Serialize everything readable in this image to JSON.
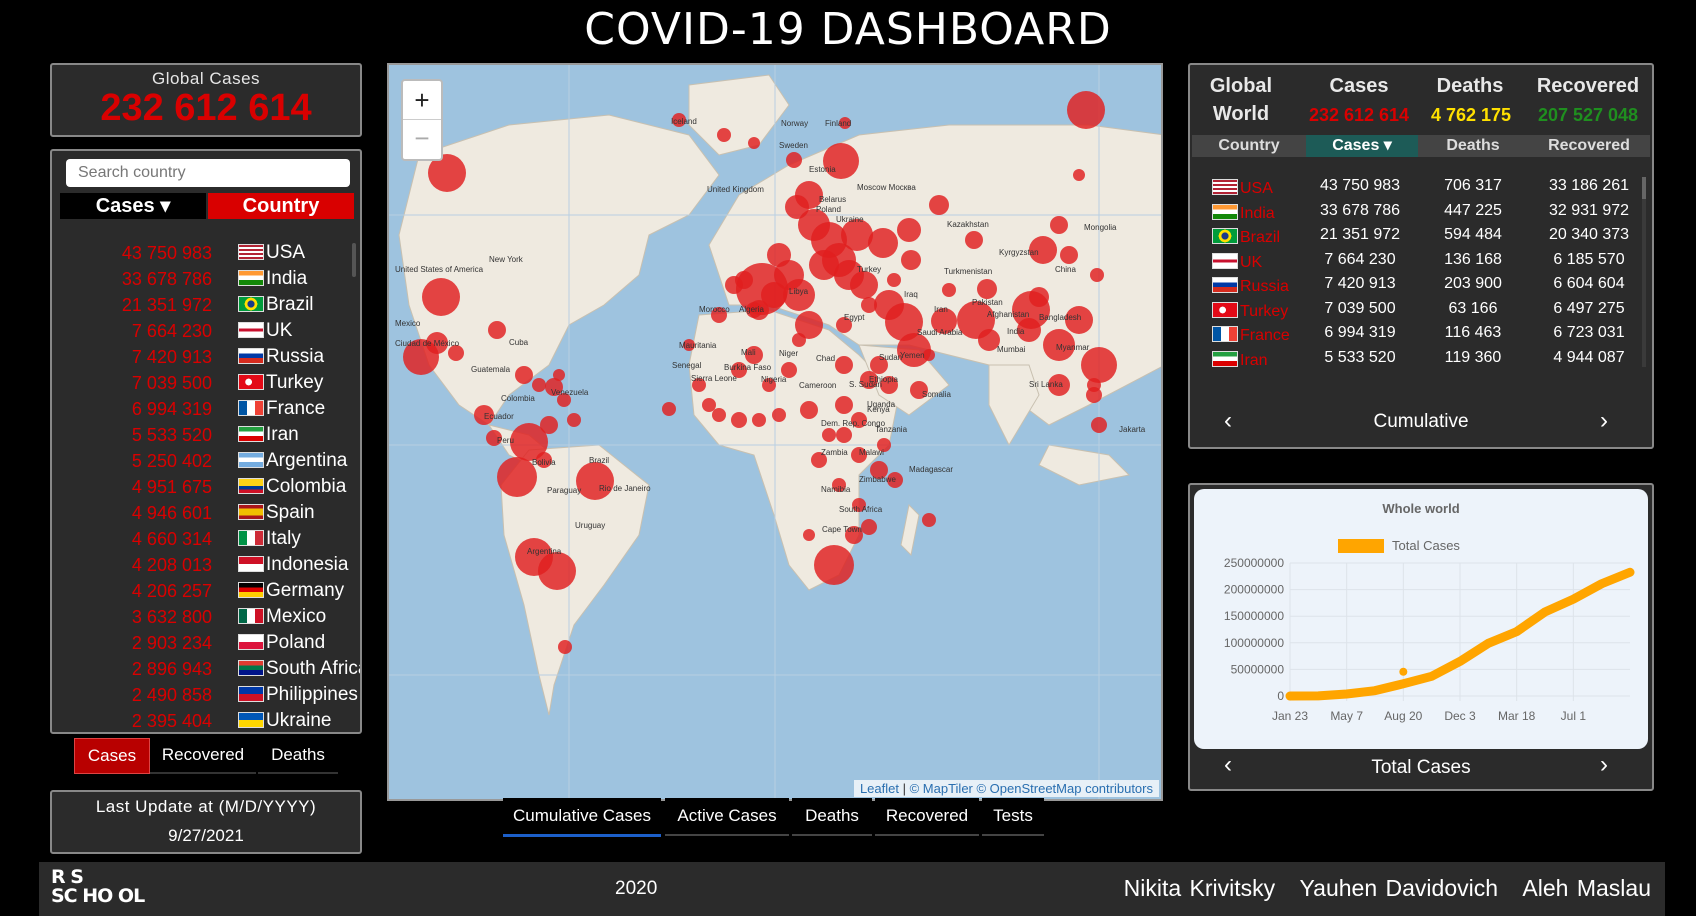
{
  "header": {
    "title": "COVID-19 DASHBOARD"
  },
  "global": {
    "label": "Global Cases",
    "value": "232 612 614"
  },
  "country_list": {
    "search_placeholder": "Search country",
    "sort_label": "Cases ▾",
    "country_label": "Country",
    "rows": [
      {
        "value": "43 750 983",
        "country": "USA",
        "flag": "us"
      },
      {
        "value": "33 678 786",
        "country": "India",
        "flag": "in"
      },
      {
        "value": "21 351 972",
        "country": "Brazil",
        "flag": "br"
      },
      {
        "value": "7 664 230",
        "country": "UK",
        "flag": "uk"
      },
      {
        "value": "7 420 913",
        "country": "Russia",
        "flag": "ru"
      },
      {
        "value": "7 039 500",
        "country": "Turkey",
        "flag": "tr"
      },
      {
        "value": "6 994 319",
        "country": "France",
        "flag": "fr"
      },
      {
        "value": "5 533 520",
        "country": "Iran",
        "flag": "ir"
      },
      {
        "value": "5 250 402",
        "country": "Argentina",
        "flag": "ar"
      },
      {
        "value": "4 951 675",
        "country": "Colombia",
        "flag": "co"
      },
      {
        "value": "4 946 601",
        "country": "Spain",
        "flag": "es"
      },
      {
        "value": "4 660 314",
        "country": "Italy",
        "flag": "it"
      },
      {
        "value": "4 208 013",
        "country": "Indonesia",
        "flag": "id"
      },
      {
        "value": "4 206 257",
        "country": "Germany",
        "flag": "de"
      },
      {
        "value": "3 632 800",
        "country": "Mexico",
        "flag": "mx"
      },
      {
        "value": "2 903 234",
        "country": "Poland",
        "flag": "pl"
      },
      {
        "value": "2 896 943",
        "country": "South Africa",
        "flag": "za"
      },
      {
        "value": "2 490 858",
        "country": "Philippines",
        "flag": "ph"
      },
      {
        "value": "2 395 404",
        "country": "Ukraine",
        "flag": "ua"
      }
    ]
  },
  "list_tabs": [
    "Cases",
    "Recovered",
    "Deaths"
  ],
  "last_update": {
    "label": "Last Update at (M/D/YYYY)",
    "date": "9/27/2021"
  },
  "map": {
    "zoom_in": "+",
    "zoom_out": "−",
    "attribution": {
      "leaflet": "Leaflet",
      "sep": " | ",
      "rest": "© MapTiler © OpenStreetMap contributors"
    },
    "labels": [
      "Iceland",
      "Norway",
      "Finland",
      "Sweden",
      "Estonia",
      "United Kingdom",
      "Belarus",
      "Poland",
      "Ukraine",
      "Moscow Москва",
      "Kazakhstan",
      "Mongolia",
      "Kyrgyzstan",
      "Turkmenistan",
      "China",
      "United States of America",
      "New York",
      "Mexico",
      "Ciudad de México",
      "Cuba",
      "Guatemala",
      "Turkey",
      "Iraq",
      "Iran",
      "Afghanistan",
      "Pakistan",
      "India",
      "Mumbai",
      "Bangladesh",
      "Myanmar",
      "Sri Lanka",
      "Morocco",
      "Algeria",
      "Libya",
      "Egypt",
      "Saudi Arabia",
      "Yemen",
      "Mauritania",
      "Mali",
      "Niger",
      "Chad",
      "Sudan",
      "Senegal",
      "Burkina Faso",
      "Nigeria",
      "Cameroon",
      "S. Sudan",
      "Ethiopia",
      "Somalia",
      "Kenya",
      "Uganda",
      "Dem. Rep. Congo",
      "Tanzania",
      "Zambia",
      "Malawi",
      "Zimbabwe",
      "Madagascar",
      "Namibia",
      "South Africa",
      "Cape Town",
      "Colombia",
      "Ecuador",
      "Peru",
      "Bolivia",
      "Brazil",
      "Paraguay",
      "Rio de Janeiro",
      "Uruguay",
      "Argentina",
      "Venezuela",
      "Sierra Leone",
      "Jakarta"
    ],
    "tabs": [
      "Cumulative Cases",
      "Active Cases",
      "Deaths",
      "Recovered",
      "Tests"
    ]
  },
  "table": {
    "scope_label": "Global",
    "region_label": "World",
    "headers": {
      "cases": "Cases",
      "deaths": "Deaths",
      "recovered": "Recovered"
    },
    "totals": {
      "cases": "232 612 614",
      "deaths": "4 762 175",
      "recovered": "207 527 048"
    },
    "sub_headers": {
      "country": "Country",
      "cases": "Cases ▾",
      "deaths": "Deaths",
      "recovered": "Recovered"
    },
    "rows": [
      {
        "country": "USA",
        "flag": "us",
        "cases": "43 750 983",
        "deaths": "706 317",
        "recovered": "33 186 261"
      },
      {
        "country": "India",
        "flag": "in",
        "cases": "33 678 786",
        "deaths": "447 225",
        "recovered": "32 931 972"
      },
      {
        "country": "Brazil",
        "flag": "br",
        "cases": "21 351 972",
        "deaths": "594 484",
        "recovered": "20 340 373"
      },
      {
        "country": "UK",
        "flag": "uk",
        "cases": "7 664 230",
        "deaths": "136 168",
        "recovered": "6 185 570"
      },
      {
        "country": "Russia",
        "flag": "ru",
        "cases": "7 420 913",
        "deaths": "203 900",
        "recovered": "6 604 604"
      },
      {
        "country": "Turkey",
        "flag": "tr",
        "cases": "7 039 500",
        "deaths": "63 166",
        "recovered": "6 497 275"
      },
      {
        "country": "France",
        "flag": "fr",
        "cases": "6 994 319",
        "deaths": "116 463",
        "recovered": "6 723 031"
      },
      {
        "country": "Iran",
        "flag": "ir",
        "cases": "5 533 520",
        "deaths": "119 360",
        "recovered": "4 944 087"
      }
    ],
    "mode": "Cumulative",
    "prev": "‹",
    "next": "›"
  },
  "chart": {
    "mode": "Total Cases",
    "prev": "‹",
    "next": "›"
  },
  "chart_data": {
    "type": "line",
    "title": "Whole world",
    "series": [
      {
        "name": "Total Cases",
        "x": [
          "Jan 23",
          "Mar 15",
          "May 7",
          "Jun 28",
          "Aug 20",
          "Oct 11",
          "Dec 3",
          "Jan 24",
          "Mar 18",
          "May 9",
          "Jul 1",
          "Aug 22",
          "Sep 26"
        ],
        "values": [
          0,
          200000,
          3800000,
          10000000,
          23000000,
          37000000,
          65000000,
          99000000,
          121000000,
          158000000,
          182000000,
          211000000,
          232600000
        ]
      }
    ],
    "x_ticks": [
      "Jan 23",
      "May 7",
      "Aug 20",
      "Dec 3",
      "Mar 18",
      "Jul 1"
    ],
    "y_ticks": [
      "250000000",
      "200000000",
      "150000000",
      "100000000",
      "50000000",
      "0"
    ],
    "ylim": [
      0,
      250000000
    ],
    "grid": true,
    "legend": "top",
    "color": "#ffa500"
  },
  "footer": {
    "logo_line1": "R  S",
    "logo_line2": "SC HO OL",
    "year": "2020",
    "authors": [
      "Nikita Krivitsky",
      "Yauhen Davidovich",
      "Aleh Maslau"
    ]
  },
  "colors": {
    "accent": "#d90000",
    "deaths": "#ffe000",
    "recovered": "#1f8f1f",
    "bubble": "#e01e1e"
  }
}
